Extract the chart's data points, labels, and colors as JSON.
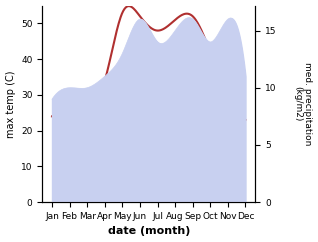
{
  "months": [
    "Jan",
    "Feb",
    "Mar",
    "Apr",
    "May",
    "Jun",
    "Jul",
    "Aug",
    "Sep",
    "Oct",
    "Nov",
    "Dec"
  ],
  "temperature": [
    24,
    24,
    26,
    34,
    53,
    52,
    48,
    51,
    52,
    42,
    30,
    23
  ],
  "precipitation": [
    9,
    10,
    10,
    11,
    13,
    16,
    14,
    15,
    16,
    14,
    16,
    11
  ],
  "temp_color": "#b03030",
  "precip_fill_color": "#c8d0f0",
  "xlabel": "date (month)",
  "ylabel_left": "max temp (C)",
  "ylabel_right": "med. precipitation\n(kg/m2)",
  "ylim_left": [
    0,
    55
  ],
  "ylim_right": [
    0,
    17.19
  ],
  "yticks_left": [
    0,
    10,
    20,
    30,
    40,
    50
  ],
  "yticks_right": [
    0,
    5,
    10,
    15
  ],
  "bg_color": "#ffffff"
}
